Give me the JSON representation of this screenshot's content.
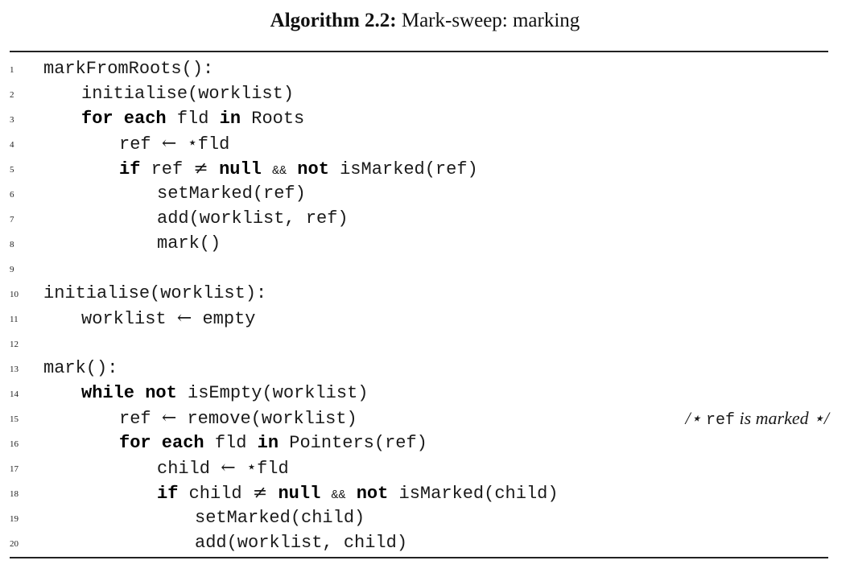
{
  "caption": {
    "label": "Algorithm 2.2:",
    "title": "Mark-sweep: marking"
  },
  "lines": [
    {
      "num": "1",
      "indent": 0,
      "tokens": [
        {
          "t": "markFromRoots():"
        }
      ]
    },
    {
      "num": "2",
      "indent": 1,
      "tokens": [
        {
          "t": "initialise(worklist)"
        }
      ]
    },
    {
      "num": "3",
      "indent": 1,
      "tokens": [
        {
          "t": "for each",
          "k": "kw"
        },
        {
          "t": " fld "
        },
        {
          "t": "in",
          "k": "kw"
        },
        {
          "t": " Roots"
        }
      ]
    },
    {
      "num": "4",
      "indent": 2,
      "tokens": [
        {
          "t": "ref "
        },
        {
          "t": "←",
          "k": "op"
        },
        {
          "t": " ⋆fld"
        }
      ]
    },
    {
      "num": "5",
      "indent": 2,
      "tokens": [
        {
          "t": "if",
          "k": "kw"
        },
        {
          "t": " ref "
        },
        {
          "t": "≠",
          "k": "op"
        },
        {
          "t": " "
        },
        {
          "t": "null",
          "k": "kw"
        },
        {
          "t": " "
        },
        {
          "t": "&&",
          "k": "amp"
        },
        {
          "t": " "
        },
        {
          "t": "not",
          "k": "kw"
        },
        {
          "t": " isMarked(ref)"
        }
      ]
    },
    {
      "num": "6",
      "indent": 3,
      "tokens": [
        {
          "t": "setMarked(ref)"
        }
      ]
    },
    {
      "num": "7",
      "indent": 3,
      "tokens": [
        {
          "t": "add(worklist, ref)"
        }
      ]
    },
    {
      "num": "8",
      "indent": 3,
      "tokens": [
        {
          "t": "mark()"
        }
      ]
    },
    {
      "num": "9",
      "indent": 0,
      "tokens": []
    },
    {
      "num": "10",
      "indent": 0,
      "tokens": [
        {
          "t": "initialise(worklist):"
        }
      ]
    },
    {
      "num": "11",
      "indent": 1,
      "tokens": [
        {
          "t": "worklist "
        },
        {
          "t": "←",
          "k": "op"
        },
        {
          "t": " empty"
        }
      ]
    },
    {
      "num": "12",
      "indent": 0,
      "tokens": []
    },
    {
      "num": "13",
      "indent": 0,
      "tokens": [
        {
          "t": "mark():"
        }
      ]
    },
    {
      "num": "14",
      "indent": 1,
      "tokens": [
        {
          "t": "while not",
          "k": "kw"
        },
        {
          "t": " isEmpty(worklist)"
        }
      ]
    },
    {
      "num": "15",
      "indent": 2,
      "tokens": [
        {
          "t": "ref "
        },
        {
          "t": "←",
          "k": "op"
        },
        {
          "t": " remove(worklist)"
        }
      ],
      "comment": [
        {
          "t": "/⋆ "
        },
        {
          "t": "ref",
          "k": "cm-code"
        },
        {
          "t": " is marked ⋆/"
        }
      ]
    },
    {
      "num": "16",
      "indent": 2,
      "tokens": [
        {
          "t": "for each",
          "k": "kw"
        },
        {
          "t": " fld "
        },
        {
          "t": "in",
          "k": "kw"
        },
        {
          "t": " Pointers(ref)"
        }
      ]
    },
    {
      "num": "17",
      "indent": 3,
      "tokens": [
        {
          "t": "child "
        },
        {
          "t": "←",
          "k": "op"
        },
        {
          "t": " ⋆fld"
        }
      ]
    },
    {
      "num": "18",
      "indent": 3,
      "tokens": [
        {
          "t": "if",
          "k": "kw"
        },
        {
          "t": " child "
        },
        {
          "t": "≠",
          "k": "op"
        },
        {
          "t": " "
        },
        {
          "t": "null",
          "k": "kw"
        },
        {
          "t": " "
        },
        {
          "t": "&&",
          "k": "amp"
        },
        {
          "t": " "
        },
        {
          "t": "not",
          "k": "kw"
        },
        {
          "t": " isMarked(child)"
        }
      ]
    },
    {
      "num": "19",
      "indent": 4,
      "tokens": [
        {
          "t": "setMarked(child)"
        }
      ]
    },
    {
      "num": "20",
      "indent": 4,
      "tokens": [
        {
          "t": "add(worklist, child)"
        }
      ]
    }
  ]
}
